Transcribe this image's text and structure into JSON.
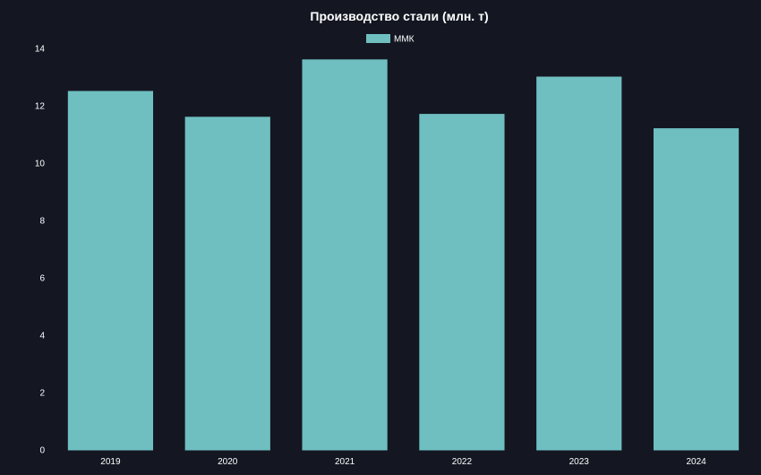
{
  "chart_data": {
    "type": "bar",
    "title": "Производство стали  (млн. т)",
    "xlabel": "",
    "ylabel": "",
    "categories": [
      "2019",
      "2020",
      "2021",
      "2022",
      "2023",
      "2024"
    ],
    "series": [
      {
        "name": "ММК",
        "values": [
          12.5,
          11.6,
          13.6,
          11.7,
          13.0,
          11.2
        ],
        "color": "#6fbfc1"
      }
    ],
    "ylim": [
      0,
      14
    ],
    "yticks": [
      "0",
      "2",
      "4",
      "6",
      "8",
      "10",
      "12",
      "14"
    ],
    "grid": false,
    "legend_position": "top-center",
    "background_color": "#141722",
    "text_color": "#ffffff"
  }
}
